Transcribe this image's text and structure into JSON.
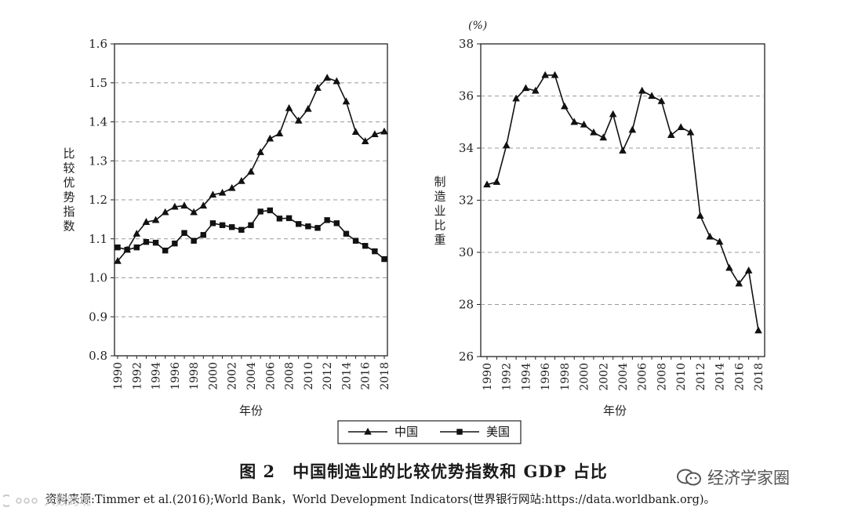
{
  "chart_data": [
    {
      "type": "line",
      "ylabel": "比较优势指数",
      "xlabel": "年份",
      "ylim": [
        0.8,
        1.6
      ],
      "yticks": [
        "0.8",
        "0.9",
        "1.0",
        "1.1",
        "1.2",
        "1.3",
        "1.4",
        "1.5",
        "1.6"
      ],
      "x": [
        1990,
        1991,
        1992,
        1993,
        1994,
        1995,
        1996,
        1997,
        1998,
        1999,
        2000,
        2001,
        2002,
        2003,
        2004,
        2005,
        2006,
        2007,
        2008,
        2009,
        2010,
        2011,
        2012,
        2013,
        2014,
        2015,
        2016,
        2017,
        2018
      ],
      "xticks": [
        "1990",
        "1992",
        "1994",
        "1996",
        "1998",
        "2000",
        "2002",
        "2004",
        "2006",
        "2008",
        "2010",
        "2012",
        "2014",
        "2016",
        "2018"
      ],
      "grid": "horizontal-dashed",
      "series": [
        {
          "name": "中国",
          "marker": "triangle",
          "values": [
            1.043,
            1.072,
            1.113,
            1.143,
            1.148,
            1.168,
            1.182,
            1.185,
            1.168,
            1.185,
            1.213,
            1.218,
            1.23,
            1.248,
            1.272,
            1.322,
            1.357,
            1.37,
            1.435,
            1.403,
            1.433,
            1.487,
            1.513,
            1.504,
            1.452,
            1.374,
            1.35,
            1.368,
            1.375
          ]
        },
        {
          "name": "美国",
          "marker": "square",
          "values": [
            1.078,
            1.072,
            1.078,
            1.092,
            1.09,
            1.07,
            1.088,
            1.115,
            1.095,
            1.11,
            1.14,
            1.135,
            1.13,
            1.123,
            1.135,
            1.17,
            1.173,
            1.152,
            1.153,
            1.138,
            1.132,
            1.128,
            1.148,
            1.14,
            1.113,
            1.095,
            1.082,
            1.068,
            1.048
          ]
        }
      ]
    },
    {
      "type": "line",
      "ylabel": "制造业比重",
      "unit": "(%)",
      "xlabel": "年份",
      "ylim": [
        26,
        38
      ],
      "yticks": [
        "26",
        "28",
        "30",
        "32",
        "34",
        "36",
        "38"
      ],
      "x": [
        1990,
        1991,
        1992,
        1993,
        1994,
        1995,
        1996,
        1997,
        1998,
        1999,
        2000,
        2001,
        2002,
        2003,
        2004,
        2005,
        2006,
        2007,
        2008,
        2009,
        2010,
        2011,
        2012,
        2013,
        2014,
        2015,
        2016,
        2017,
        2018
      ],
      "xticks": [
        "1990",
        "1992",
        "1994",
        "1996",
        "1998",
        "2000",
        "2002",
        "2004",
        "2006",
        "2008",
        "2010",
        "2012",
        "2014",
        "2016",
        "2018"
      ],
      "grid": "horizontal-dashed",
      "series": [
        {
          "name": "中国",
          "marker": "triangle",
          "values": [
            32.6,
            32.7,
            34.1,
            35.9,
            36.3,
            36.2,
            36.8,
            36.8,
            35.6,
            35.0,
            34.9,
            34.6,
            34.4,
            35.3,
            33.9,
            34.7,
            36.2,
            36.0,
            35.8,
            34.5,
            34.8,
            34.6,
            31.4,
            30.6,
            30.4,
            29.4,
            28.8,
            29.3,
            27.0
          ]
        }
      ]
    }
  ],
  "legend": [
    "中国",
    "美国"
  ],
  "caption": "图 2　中国制造业的比较优势指数和 GDP 占比",
  "source": "资料来源:Timmer et al.(2016);World Bank，World Development Indicators(世界银行网站:https://data.worldbank.org)。",
  "watermark": "经济学家圈",
  "watermark_left": "大数跨境"
}
